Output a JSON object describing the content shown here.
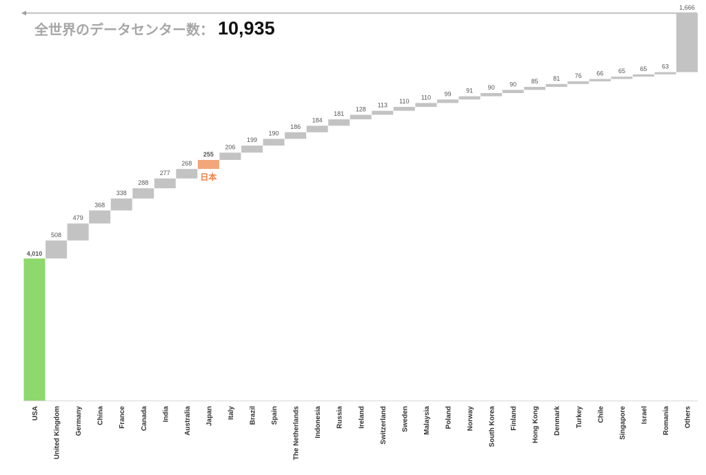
{
  "header": {
    "label": "全世界のデータセンター数：",
    "total": "10,935"
  },
  "chart_data": {
    "type": "bar",
    "subtype": "waterfall",
    "categories": [
      "USA",
      "United Kingdom",
      "Germany",
      "China",
      "France",
      "Canada",
      "India",
      "Australia",
      "Japan",
      "Italy",
      "Brazil",
      "Spain",
      "The Netherlands",
      "Indonesia",
      "Russia",
      "Ireland",
      "Switzerland",
      "Sweden",
      "Malaysia",
      "Poland",
      "Norway",
      "South Korea",
      "Finland",
      "Hong Kong",
      "Denmark",
      "Turkey",
      "Chile",
      "Singapore",
      "Israel",
      "Romania",
      "Others"
    ],
    "values": [
      4010,
      508,
      479,
      368,
      338,
      288,
      277,
      268,
      255,
      206,
      199,
      190,
      186,
      184,
      181,
      128,
      113,
      110,
      110,
      99,
      91,
      90,
      90,
      85,
      81,
      76,
      66,
      65,
      65,
      63,
      1666
    ],
    "value_labels": [
      "4,010",
      "508",
      "479",
      "368",
      "338",
      "288",
      "277",
      "268",
      "255",
      "206",
      "199",
      "190",
      "186",
      "184",
      "181",
      "128",
      "113",
      "110",
      "110",
      "99",
      "91",
      "90",
      "90",
      "85",
      "81",
      "76",
      "66",
      "65",
      "65",
      "63",
      "1,666"
    ],
    "total": 10935,
    "highlight": {
      "category": "Japan",
      "label": "日本"
    },
    "colors": {
      "first": "#8ed86e",
      "default": "#c3c3c3",
      "highlight": "#f2a67a",
      "highlight_text": "#ef7f3e",
      "arrow": "#9e9e9e"
    },
    "ylim": [
      0,
      10935
    ],
    "grid": false,
    "legend": "none"
  }
}
